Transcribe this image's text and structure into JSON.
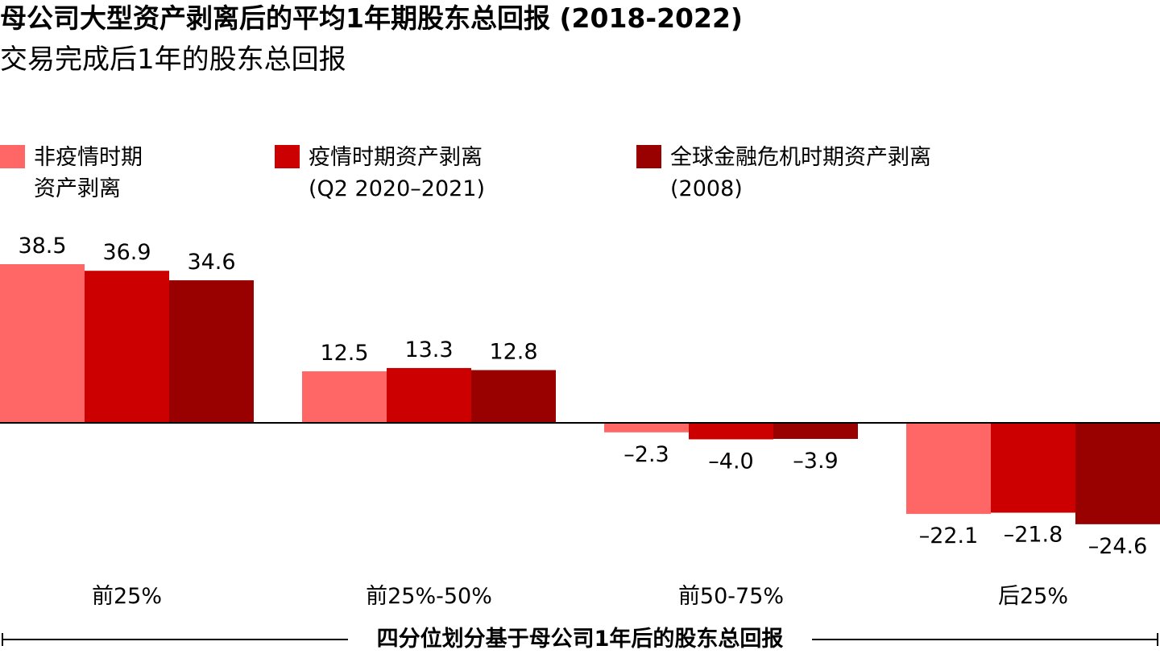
{
  "header": {
    "title": "母公司大型资产剥离后的平均1年期股东总回报 (2018-2022)",
    "subtitle": "交易完成后1年的股东总回报"
  },
  "legend": [
    {
      "label": "非疫情时期\n资产剥离",
      "color": "#ff6666"
    },
    {
      "label": "疫情时期资产剥离\n(Q2 2020–2021)",
      "color": "#cc0000"
    },
    {
      "label": "全球金融危机时期资产剥离\n(2008)",
      "color": "#990000"
    }
  ],
  "chart_data": {
    "type": "bar",
    "title": "母公司大型资产剥离后的平均1年期股东总回报 (2018-2022)",
    "subtitle": "交易完成后1年的股东总回报",
    "categories": [
      "前25%",
      "前25%-50%",
      "前50-75%",
      "后25%"
    ],
    "series": [
      {
        "name": "非疫情时期资产剥离",
        "color": "#ff6666",
        "values": [
          38.5,
          12.5,
          -2.3,
          -22.1
        ],
        "labels": [
          "38.5",
          "12.5",
          "–2.3",
          "–22.1"
        ]
      },
      {
        "name": "疫情时期资产剥离 (Q2 2020–2021)",
        "color": "#cc0000",
        "values": [
          36.9,
          13.3,
          -4.0,
          -21.8
        ],
        "labels": [
          "36.9",
          "13.3",
          "–4.0",
          "–21.8"
        ]
      },
      {
        "name": "全球金融危机时期资产剥离 (2008)",
        "color": "#990000",
        "values": [
          34.6,
          12.8,
          -3.9,
          -24.6
        ],
        "labels": [
          "34.6",
          "12.8",
          "–3.9",
          "–24.6"
        ]
      }
    ],
    "xlabel": "四分位划分基于母公司1年后的股东总回报",
    "ylabel": "",
    "ylim": [
      -24.6,
      38.5
    ],
    "grid": false,
    "legend_position": "top-left"
  }
}
